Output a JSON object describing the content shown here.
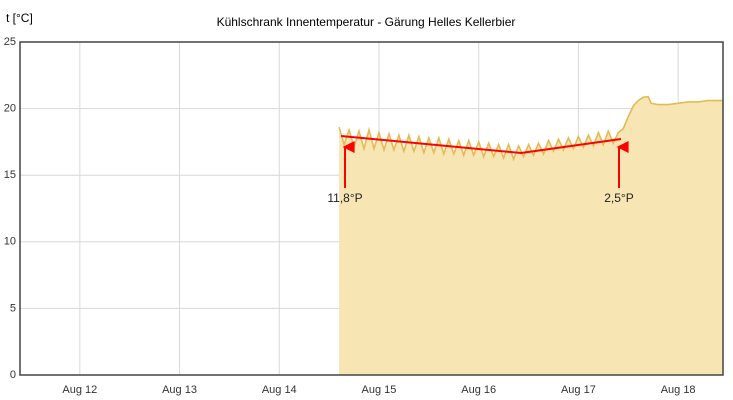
{
  "chart_data": {
    "type": "area",
    "title": "Kühlschrank Innentemperatur - Gärung Helles Kellerbier",
    "y_label": "t [°C]",
    "x": [
      14.6,
      14.65,
      14.7,
      14.75,
      14.8,
      14.85,
      14.9,
      14.95,
      15.0,
      15.05,
      15.1,
      15.15,
      15.2,
      15.25,
      15.3,
      15.35,
      15.4,
      15.45,
      15.5,
      15.55,
      15.6,
      15.65,
      15.7,
      15.75,
      15.8,
      15.85,
      15.9,
      15.95,
      16.0,
      16.05,
      16.1,
      16.15,
      16.2,
      16.25,
      16.3,
      16.35,
      16.4,
      16.45,
      16.5,
      16.55,
      16.6,
      16.65,
      16.7,
      16.75,
      16.8,
      16.85,
      16.9,
      16.95,
      17.0,
      17.05,
      17.1,
      17.15,
      17.2,
      17.25,
      17.3,
      17.35,
      17.4,
      17.45,
      17.5,
      17.55,
      17.6,
      17.65,
      17.7,
      17.73,
      17.8,
      17.9,
      18.0,
      18.1,
      18.2,
      18.3,
      18.45
    ],
    "series": [
      {
        "color": "#e3bb55",
        "fill": "#f7e5b3",
        "values": [
          18.6,
          17.3,
          18.4,
          17.1,
          18.3,
          17.0,
          18.4,
          17.0,
          18.2,
          16.9,
          18.1,
          16.9,
          18.0,
          16.8,
          18.0,
          16.8,
          17.9,
          16.7,
          17.8,
          16.7,
          17.8,
          16.6,
          17.7,
          16.6,
          17.6,
          16.5,
          17.6,
          16.5,
          17.5,
          16.4,
          17.4,
          16.4,
          17.3,
          16.3,
          17.3,
          16.2,
          17.2,
          16.4,
          17.3,
          16.5,
          17.4,
          16.6,
          17.6,
          16.8,
          17.7,
          16.9,
          17.8,
          17.0,
          17.9,
          17.1,
          18.0,
          17.2,
          18.2,
          17.3,
          18.3,
          17.4,
          18.2,
          18.5,
          19.4,
          20.2,
          20.6,
          20.85,
          20.9,
          20.4,
          20.3,
          20.3,
          20.4,
          20.5,
          20.5,
          20.6,
          20.6
        ]
      }
    ],
    "annotations": [
      "11,8°P",
      "2,5°P"
    ],
    "xlim": [
      11.4,
      18.45
    ],
    "xticks": [
      {
        "value": 12,
        "label": "Aug 12"
      },
      {
        "value": 13,
        "label": "Aug 13"
      },
      {
        "value": 14,
        "label": "Aug 14"
      },
      {
        "value": 15,
        "label": "Aug 15"
      },
      {
        "value": 16,
        "label": "Aug 16"
      },
      {
        "value": 17,
        "label": "Aug 17"
      },
      {
        "value": 18,
        "label": "Aug 18"
      }
    ],
    "ylim": [
      0,
      25
    ],
    "yticks": [
      0,
      5,
      10,
      15,
      20,
      25
    ],
    "grid": true
  }
}
